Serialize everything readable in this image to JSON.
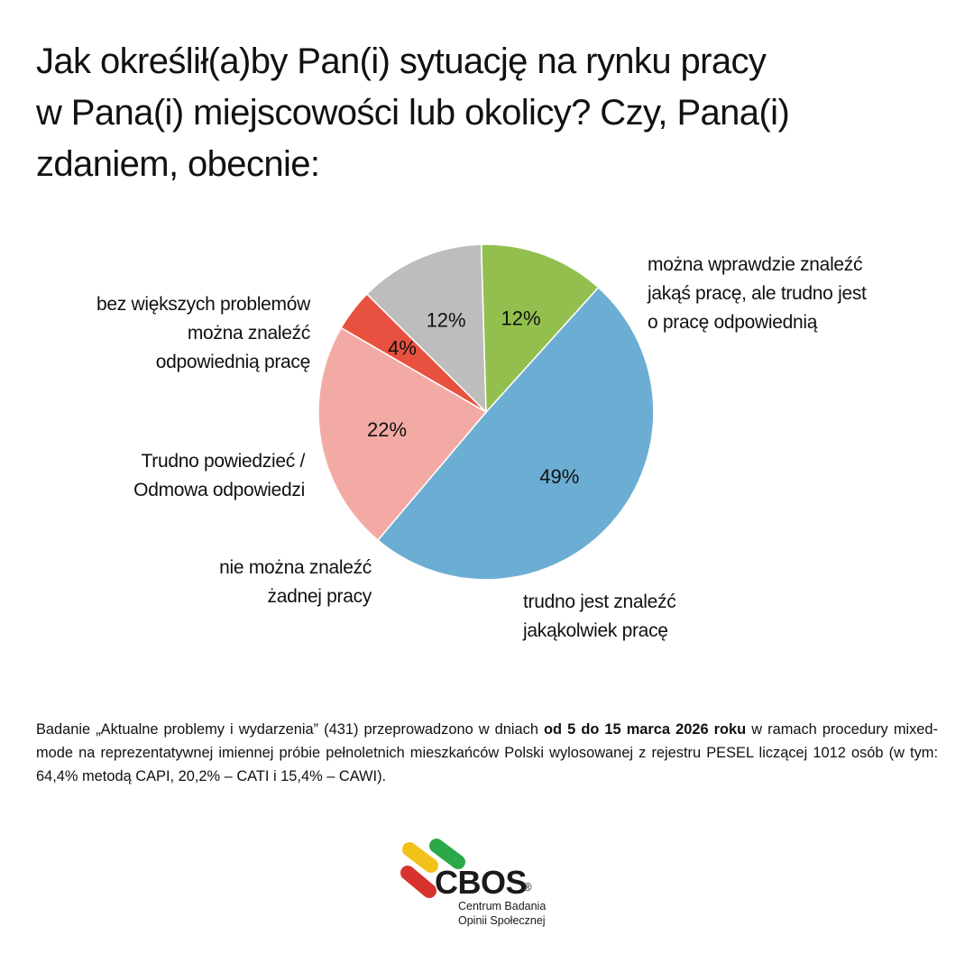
{
  "title_lines": [
    "Jak określił(a)by Pan(i) sytuację na rynku pracy",
    "w Pana(i) miejscowości lub okolicy? Czy, Pana(i)",
    "zdaniem, obecnie:"
  ],
  "chart_data": {
    "type": "pie",
    "title": "Jak określił(a)by Pan(i) sytuację na rynku pracy w Pana(i) miejscowości lub okolicy? Czy, Pana(i) zdaniem, obecnie:",
    "start_angle_deg": -48,
    "direction": "clockwise",
    "slices": [
      {
        "label": "można wprawdzie znaleźć jakąś pracę, ale trudno jest o pracę odpowiednią",
        "value": 49,
        "display": "49%",
        "color": "#6caed3"
      },
      {
        "label": "trudno jest znaleźć jakąkolwiek pracę",
        "value": 22,
        "display": "22%",
        "color": "#f4aaa4"
      },
      {
        "label": "nie można znaleźć żadnej pracy",
        "value": 4,
        "display": "4%",
        "color": "#e8513f"
      },
      {
        "label": "Trudno powiedzieć / Odmowa odpowiedzi",
        "value": 12,
        "display": "12%",
        "color": "#bdbdbd"
      },
      {
        "label": "bez większych problemów można znaleźć odpowiednią pracę",
        "value": 12,
        "display": "12%",
        "color": "#93bf4e"
      }
    ]
  },
  "labels": {
    "s0": [
      "można wprawdzie znaleźć",
      "jakąś pracę, ale trudno jest",
      "o pracę odpowiednią"
    ],
    "s1": [
      "trudno jest znaleźć",
      "jakąkolwiek pracę"
    ],
    "s2": [
      "nie można znaleźć",
      "żadnej pracy"
    ],
    "s3": [
      "Trudno powiedzieć /",
      "Odmowa odpowiedzi"
    ],
    "s4": [
      "bez większych problemów",
      "można znaleźć",
      "odpowiednią pracę"
    ]
  },
  "footnote": {
    "part1": "Badanie „Aktualne problemy i wydarzenia” (431) przeprowadzono w dniach ",
    "bold": "od 5 do 15 marca 2026 roku",
    "part2": " w ramach procedury mixed-mode na reprezentatywnej imiennej próbie pełnoletnich mieszkańców Polski wylosowanej z rejestru PESEL liczącej 1012 osób (w tym: 64,4% metodą CAPI, 20,2% – CATI i 15,4% – CAWI)."
  },
  "logo": {
    "name": "CBOS",
    "registered": "®",
    "subtitle_lines": [
      "Centrum Badania",
      "Opinii Społecznej"
    ],
    "colors": [
      "#f2c21b",
      "#2aa84a",
      "#d8322f"
    ]
  }
}
